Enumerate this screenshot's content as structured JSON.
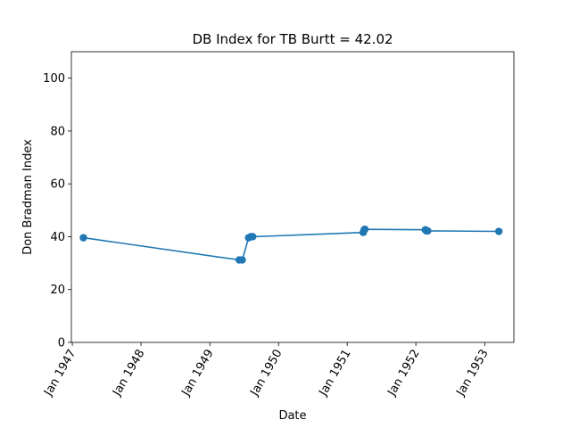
{
  "chart_data": {
    "type": "line",
    "title": "DB Index for TB Burtt = 42.02",
    "xlabel": "Date",
    "ylabel": "Don Bradman Index",
    "ylim": [
      0,
      110
    ],
    "yticks": [
      0,
      20,
      40,
      60,
      80,
      100
    ],
    "xlim": [
      "1946-12-27",
      "1953-06-05"
    ],
    "xticks": [
      {
        "date": "1947-01-01",
        "label": "Jan 1947"
      },
      {
        "date": "1948-01-01",
        "label": "Jan 1948"
      },
      {
        "date": "1949-01-01",
        "label": "Jan 1949"
      },
      {
        "date": "1950-01-01",
        "label": "Jan 1950"
      },
      {
        "date": "1951-01-01",
        "label": "Jan 1951"
      },
      {
        "date": "1952-01-01",
        "label": "Jan 1952"
      },
      {
        "date": "1953-01-01",
        "label": "Jan 1953"
      }
    ],
    "grid": false,
    "color": "#1f77b4",
    "series": [
      {
        "points": [
          {
            "x": "1947-03-01",
            "y": 39.6
          },
          {
            "x": "1949-06-06",
            "y": 31.2
          },
          {
            "x": "1949-06-22",
            "y": 31.2
          },
          {
            "x": "1949-07-26",
            "y": 39.6
          },
          {
            "x": "1949-08-07",
            "y": 40.0
          },
          {
            "x": "1949-08-17",
            "y": 40.0
          },
          {
            "x": "1951-03-27",
            "y": 41.6
          },
          {
            "x": "1951-04-01",
            "y": 42.6
          },
          {
            "x": "1951-04-05",
            "y": 42.8
          },
          {
            "x": "1952-02-20",
            "y": 42.6
          },
          {
            "x": "1952-02-26",
            "y": 42.2
          },
          {
            "x": "1952-03-04",
            "y": 42.2
          },
          {
            "x": "1953-03-17",
            "y": 42.0
          }
        ]
      }
    ]
  }
}
